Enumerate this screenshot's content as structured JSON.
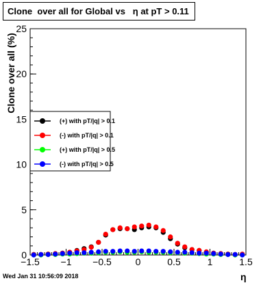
{
  "title": "Clone  over all for Global vs   η at pT > 0.11",
  "timestamp": "Wed Jan 31 10:56:09 2018",
  "chart_data": {
    "type": "scatter",
    "xlabel": "η",
    "ylabel": "Clone  over all (%)",
    "xlim": [
      -1.5,
      1.5
    ],
    "ylim": [
      0,
      25
    ],
    "x_ticks": [
      "-1.5",
      "-1",
      "-0.5",
      "0",
      "0.5",
      "1",
      "1.5"
    ],
    "y_ticks": [
      "0",
      "5",
      "10",
      "15",
      "20",
      "25"
    ],
    "legend_position": "middle-left",
    "x": [
      -1.45,
      -1.35,
      -1.25,
      -1.15,
      -1.05,
      -0.95,
      -0.85,
      -0.75,
      -0.65,
      -0.55,
      -0.45,
      -0.35,
      -0.25,
      -0.15,
      -0.05,
      0.05,
      0.15,
      0.25,
      0.35,
      0.45,
      0.55,
      0.65,
      0.75,
      0.85,
      0.95,
      1.05,
      1.15,
      1.25,
      1.35,
      1.45
    ],
    "series": [
      {
        "name": "(+) with pT/|q| > 0.1",
        "color": "#000000",
        "values": [
          0.05,
          0.05,
          0.1,
          0.15,
          0.2,
          0.3,
          0.5,
          0.7,
          0.9,
          1.4,
          2.2,
          2.8,
          2.9,
          2.9,
          2.8,
          3.0,
          3.1,
          3.0,
          2.5,
          1.8,
          1.2,
          0.8,
          0.6,
          0.5,
          0.3,
          0.2,
          0.15,
          0.1,
          0.05,
          0.05
        ]
      },
      {
        "name": "(-) with pT/|q| > 0.1",
        "color": "#ff0000",
        "values": [
          0.05,
          0.05,
          0.1,
          0.15,
          0.2,
          0.3,
          0.45,
          0.6,
          0.85,
          1.4,
          2.3,
          2.8,
          3.0,
          2.9,
          3.1,
          3.2,
          3.3,
          3.1,
          2.7,
          2.0,
          1.3,
          0.9,
          0.6,
          0.5,
          0.35,
          0.2,
          0.15,
          0.1,
          0.05,
          0.1
        ]
      },
      {
        "name": "(+) with pT/|q| > 0.5",
        "color": "#00ff00",
        "values": [
          0.0,
          0.0,
          0.05,
          0.05,
          0.1,
          0.1,
          0.15,
          0.2,
          0.2,
          0.25,
          0.3,
          0.3,
          0.35,
          0.3,
          0.3,
          0.35,
          0.3,
          0.3,
          0.3,
          0.25,
          0.25,
          0.2,
          0.2,
          0.15,
          0.1,
          0.1,
          0.05,
          0.05,
          0.0,
          0.0
        ]
      },
      {
        "name": "(-) with pT/|q| > 0.5",
        "color": "#0000ff",
        "values": [
          0.0,
          0.05,
          0.05,
          0.1,
          0.15,
          0.2,
          0.25,
          0.25,
          0.3,
          0.35,
          0.4,
          0.4,
          0.45,
          0.45,
          0.4,
          0.45,
          0.45,
          0.4,
          0.4,
          0.35,
          0.3,
          0.3,
          0.25,
          0.2,
          0.2,
          0.15,
          0.1,
          0.05,
          0.05,
          0.0
        ]
      }
    ]
  }
}
